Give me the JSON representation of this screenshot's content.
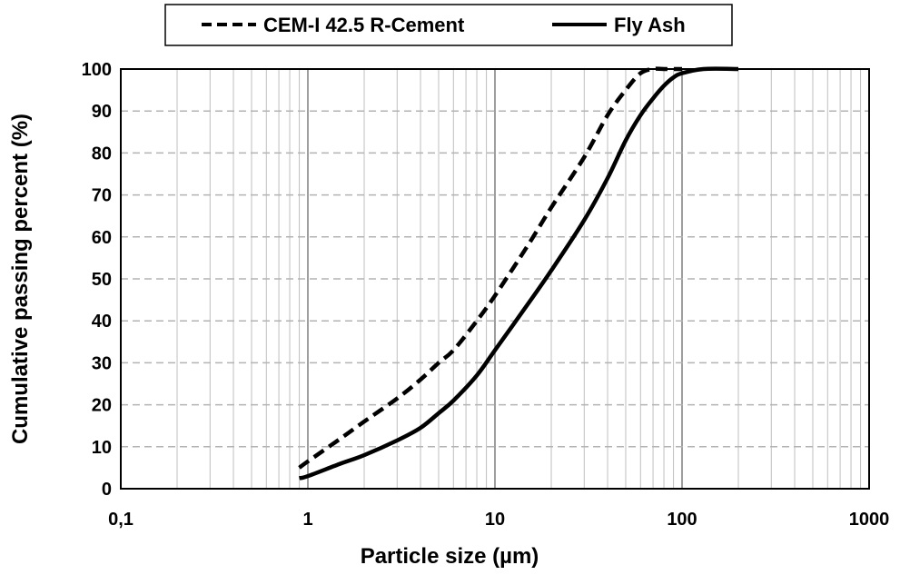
{
  "chart_data": {
    "type": "line",
    "xlabel": "Particle size (µm)",
    "ylabel": "Cumulative passing percent (%)",
    "x_scale": "log",
    "xlim": [
      0.1,
      1000
    ],
    "ylim": [
      0,
      100
    ],
    "x_ticks": [
      0.1,
      1,
      10,
      100,
      1000
    ],
    "x_tick_labels": [
      "0,1",
      "1",
      "10",
      "100",
      "1000"
    ],
    "y_ticks": [
      0,
      10,
      20,
      30,
      40,
      50,
      60,
      70,
      80,
      90,
      100
    ],
    "y_tick_labels": [
      "0",
      "10",
      "20",
      "30",
      "40",
      "50",
      "60",
      "70",
      "80",
      "90",
      "100"
    ],
    "grid": true,
    "legend_position": "top",
    "series": [
      {
        "name": "CEM-I 42.5 R-Cement",
        "style": "dashed",
        "color": "#000000",
        "x": [
          0.9,
          1,
          1.5,
          2,
          3,
          4,
          5,
          6,
          8,
          10,
          15,
          20,
          30,
          40,
          50,
          60,
          70,
          80,
          100
        ],
        "y": [
          5,
          6.5,
          12,
          16,
          21.5,
          26,
          30,
          33,
          40,
          46,
          58,
          67,
          79,
          89,
          95,
          99,
          100,
          100,
          100
        ]
      },
      {
        "name": "Fly Ash",
        "style": "solid",
        "color": "#000000",
        "x": [
          0.9,
          1,
          1.5,
          2,
          3,
          4,
          5,
          6,
          8,
          10,
          15,
          20,
          30,
          40,
          50,
          60,
          70,
          80,
          90,
          100,
          130,
          200
        ],
        "y": [
          2.5,
          3,
          6,
          8,
          11.5,
          14.5,
          18,
          21,
          27,
          33,
          44,
          52,
          64,
          74,
          83,
          89,
          93,
          96,
          98,
          99,
          100,
          100
        ]
      }
    ]
  }
}
